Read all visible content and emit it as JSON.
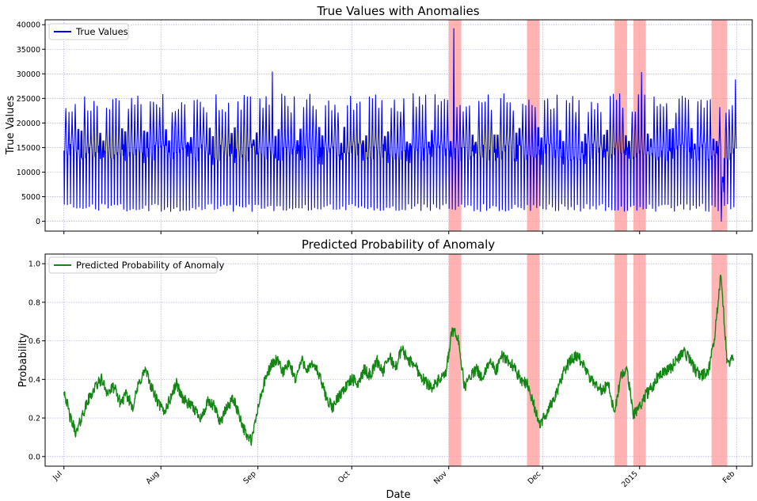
{
  "chart_data": [
    {
      "type": "line",
      "title": "True Values with Anomalies",
      "xlabel": "",
      "ylabel": "True Values",
      "x_range": [
        "2014-06-25",
        "2015-02-06"
      ],
      "ylim": [
        -2000,
        41000
      ],
      "yticks": [
        0,
        5000,
        10000,
        15000,
        20000,
        25000,
        30000,
        35000,
        40000
      ],
      "grid": true,
      "legend_position": "top-left",
      "series": [
        {
          "name": "True Values",
          "color": "#0000ff",
          "x": [
            "2014-07-01",
            "2015-01-31"
          ],
          "pattern": "daily-cycle",
          "daily_min_approx": 2000,
          "daily_peak_approx": 24000,
          "notable_points": [
            {
              "x": "2014-09-05",
              "y": 30400
            },
            {
              "x": "2014-11-02",
              "y": 39200
            },
            {
              "x": "2015-01-01",
              "y": 30300
            },
            {
              "x": "2015-01-27",
              "y": 0
            },
            {
              "x": "2015-01-31",
              "y": 28800
            }
          ]
        }
      ],
      "anomaly_windows": [
        [
          "2014-11-01",
          "2014-11-05"
        ],
        [
          "2014-11-26",
          "2014-11-30"
        ],
        [
          "2014-12-24",
          "2014-12-28"
        ],
        [
          "2014-12-30",
          "2015-01-03"
        ],
        [
          "2015-01-24",
          "2015-01-29"
        ]
      ]
    },
    {
      "type": "line",
      "title": "Predicted Probability of Anomaly",
      "xlabel": "Date",
      "ylabel": "Probability",
      "x_range": [
        "2014-06-25",
        "2015-02-06"
      ],
      "ylim": [
        -0.05,
        1.05
      ],
      "yticks": [
        0.0,
        0.2,
        0.4,
        0.6,
        0.8,
        1.0
      ],
      "xtick_dates": [
        "2014-07-01",
        "2014-08-01",
        "2014-09-01",
        "2014-10-01",
        "2014-11-01",
        "2014-12-01",
        "2015-01-01",
        "2015-02-01"
      ],
      "xtick_labels": [
        "Jul",
        "Aug",
        "Sep",
        "Oct",
        "Nov",
        "Dec",
        "2015",
        "Feb"
      ],
      "grid": true,
      "legend_position": "top-left",
      "series": [
        {
          "name": "Predicted Probability of Anomaly",
          "color": "#138613",
          "x": [
            "2014-07-01",
            "2014-07-03",
            "2014-07-05",
            "2014-07-07",
            "2014-07-09",
            "2014-07-11",
            "2014-07-13",
            "2014-07-15",
            "2014-07-17",
            "2014-07-19",
            "2014-07-21",
            "2014-07-23",
            "2014-07-25",
            "2014-07-27",
            "2014-07-29",
            "2014-07-31",
            "2014-08-02",
            "2014-08-04",
            "2014-08-06",
            "2014-08-08",
            "2014-08-10",
            "2014-08-12",
            "2014-08-14",
            "2014-08-16",
            "2014-08-18",
            "2014-08-20",
            "2014-08-22",
            "2014-08-24",
            "2014-08-26",
            "2014-08-28",
            "2014-08-30",
            "2014-09-01",
            "2014-09-03",
            "2014-09-05",
            "2014-09-07",
            "2014-09-09",
            "2014-09-11",
            "2014-09-13",
            "2014-09-15",
            "2014-09-17",
            "2014-09-19",
            "2014-09-21",
            "2014-09-23",
            "2014-09-25",
            "2014-09-27",
            "2014-09-29",
            "2014-10-01",
            "2014-10-03",
            "2014-10-05",
            "2014-10-07",
            "2014-10-09",
            "2014-10-11",
            "2014-10-13",
            "2014-10-15",
            "2014-10-17",
            "2014-10-19",
            "2014-10-21",
            "2014-10-23",
            "2014-10-25",
            "2014-10-27",
            "2014-10-29",
            "2014-10-31",
            "2014-11-02",
            "2014-11-04",
            "2014-11-06",
            "2014-11-08",
            "2014-11-10",
            "2014-11-12",
            "2014-11-14",
            "2014-11-16",
            "2014-11-18",
            "2014-11-20",
            "2014-11-22",
            "2014-11-24",
            "2014-11-26",
            "2014-11-28",
            "2014-11-30",
            "2014-12-02",
            "2014-12-04",
            "2014-12-06",
            "2014-12-08",
            "2014-12-10",
            "2014-12-12",
            "2014-12-14",
            "2014-12-16",
            "2014-12-18",
            "2014-12-20",
            "2014-12-22",
            "2014-12-24",
            "2014-12-26",
            "2014-12-28",
            "2014-12-30",
            "2015-01-01",
            "2015-01-03",
            "2015-01-05",
            "2015-01-07",
            "2015-01-09",
            "2015-01-11",
            "2015-01-13",
            "2015-01-15",
            "2015-01-17",
            "2015-01-19",
            "2015-01-21",
            "2015-01-23",
            "2015-01-25",
            "2015-01-27",
            "2015-01-29",
            "2015-01-31"
          ],
          "values": [
            0.35,
            0.2,
            0.12,
            0.22,
            0.3,
            0.36,
            0.4,
            0.33,
            0.36,
            0.28,
            0.32,
            0.26,
            0.38,
            0.45,
            0.36,
            0.28,
            0.23,
            0.3,
            0.38,
            0.3,
            0.27,
            0.24,
            0.2,
            0.28,
            0.26,
            0.18,
            0.25,
            0.3,
            0.22,
            0.12,
            0.08,
            0.25,
            0.38,
            0.47,
            0.5,
            0.44,
            0.48,
            0.4,
            0.5,
            0.45,
            0.48,
            0.4,
            0.3,
            0.25,
            0.32,
            0.36,
            0.4,
            0.38,
            0.45,
            0.42,
            0.5,
            0.44,
            0.52,
            0.46,
            0.56,
            0.5,
            0.48,
            0.42,
            0.38,
            0.36,
            0.4,
            0.42,
            0.65,
            0.62,
            0.36,
            0.42,
            0.45,
            0.4,
            0.5,
            0.44,
            0.52,
            0.5,
            0.46,
            0.4,
            0.38,
            0.28,
            0.16,
            0.22,
            0.28,
            0.35,
            0.45,
            0.5,
            0.52,
            0.48,
            0.4,
            0.38,
            0.34,
            0.38,
            0.22,
            0.42,
            0.44,
            0.22,
            0.26,
            0.32,
            0.36,
            0.42,
            0.45,
            0.46,
            0.5,
            0.55,
            0.5,
            0.44,
            0.42,
            0.44,
            0.62,
            0.95,
            0.48,
            0.52
          ]
        }
      ],
      "anomaly_windows": [
        [
          "2014-11-01",
          "2014-11-05"
        ],
        [
          "2014-11-26",
          "2014-11-30"
        ],
        [
          "2014-12-24",
          "2014-12-28"
        ],
        [
          "2014-12-30",
          "2015-01-03"
        ],
        [
          "2015-01-24",
          "2015-01-29"
        ]
      ]
    }
  ]
}
